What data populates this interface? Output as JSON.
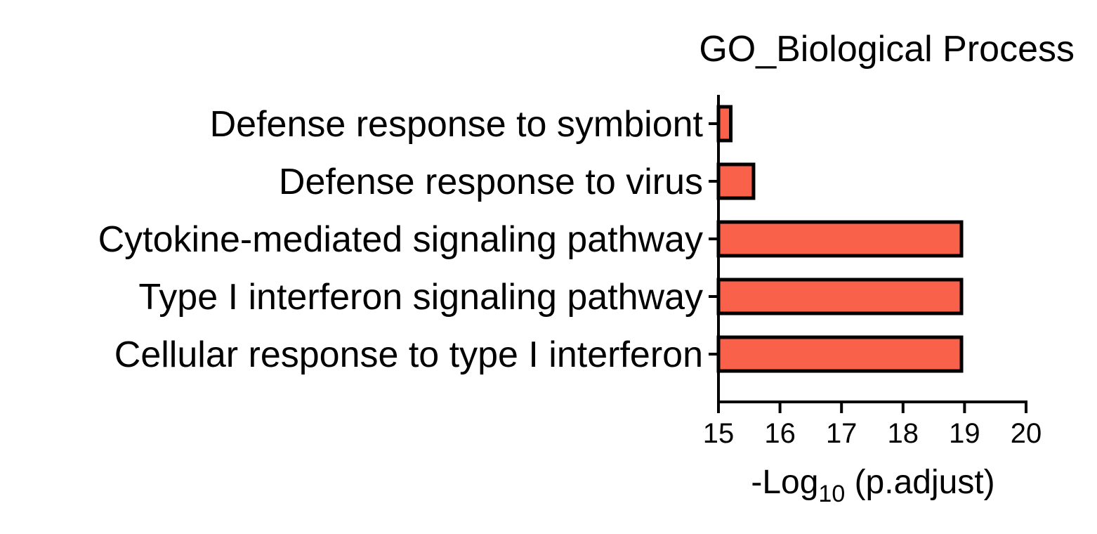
{
  "chart_data": {
    "type": "bar",
    "orientation": "horizontal",
    "title": "GO_Biological Process",
    "xlabel": {
      "prefix": "-Log",
      "subscript": "10",
      "suffix": " (p.adjust)"
    },
    "ylabel": "",
    "categories": [
      "Defense response to symbiont",
      "Defense response to virus",
      "Cytokine-mediated signaling pathway",
      "Type I interferon signaling pathway",
      "Cellular response to type I interferon"
    ],
    "values": [
      15.2,
      15.57,
      18.95,
      18.95,
      18.95
    ],
    "xlim": [
      15,
      20
    ],
    "xticks": [
      "15",
      "16",
      "17",
      "18",
      "19",
      "20"
    ],
    "grid": false,
    "legend": "none",
    "colors": {
      "bar_fill": "#f9614b",
      "bar_stroke": "#000000",
      "axis": "#000000"
    }
  }
}
